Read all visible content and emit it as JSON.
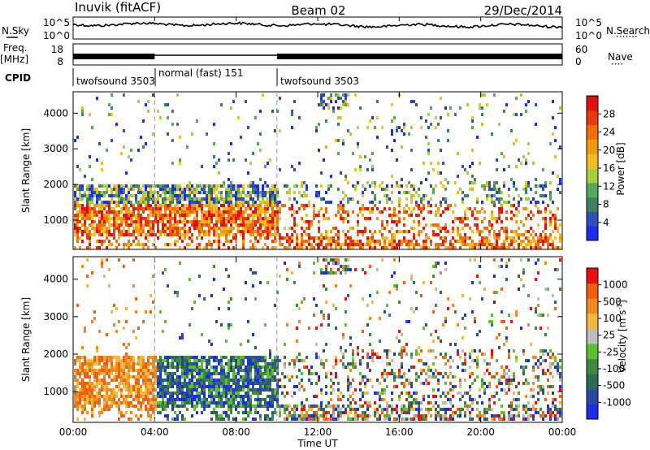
{
  "header": {
    "radar": "Inuvik (fitACF)",
    "beam": "Beam 02",
    "date": "29/Dec/2014"
  },
  "nsky_panel": {
    "left_label": "N.Sky",
    "right_label": "N.Search",
    "right_dots": "·······",
    "left_ticks": [
      "10^5",
      "10^0"
    ],
    "right_ticks": [
      "10^5",
      "10^0"
    ]
  },
  "freq_panel": {
    "left_label": "Freq.",
    "left_unit": "[MHz]",
    "right_label": "Nave",
    "right_dots": "····",
    "left_ticks": [
      "18",
      "8"
    ],
    "right_ticks": [
      "60",
      "0"
    ]
  },
  "cpid": {
    "label": "CPID",
    "modes": [
      {
        "name": "twofsound 3503",
        "start_h": 0,
        "end_h": 4
      },
      {
        "name": "normal (fast) 151",
        "start_h": 4,
        "end_h": 10
      },
      {
        "name": "twofsound 3503",
        "start_h": 10,
        "end_h": 24
      }
    ]
  },
  "chart_data": [
    {
      "type": "heatmap",
      "name": "power-panel",
      "ylabel": "Slant Range [km]",
      "ylim": [
        180,
        4600
      ],
      "yticks": [
        "1000",
        "2000",
        "3000",
        "4000"
      ],
      "ytick_values": [
        1000,
        2000,
        3000,
        4000
      ],
      "xlim_hours": [
        0,
        24
      ],
      "colorbar": {
        "label": "Power [dB]",
        "ticks": [
          "4",
          "8",
          "12",
          "16",
          "20",
          "24",
          "28"
        ],
        "colors": [
          "#1c2cf2",
          "#2e4fb8",
          "#3f8060",
          "#55a85a",
          "#a8cf3a",
          "#f0c020",
          "#f09a10",
          "#f26e0a",
          "#e83a0a",
          "#e01010"
        ]
      }
    },
    {
      "type": "heatmap",
      "name": "velocity-panel",
      "ylabel": "Slant Range [km]",
      "ylim": [
        180,
        4600
      ],
      "yticks": [
        "1000",
        "2000",
        "3000",
        "4000"
      ],
      "ytick_values": [
        1000,
        2000,
        3000,
        4000
      ],
      "xlim_hours": [
        0,
        24
      ],
      "colorbar": {
        "label": "Velocity [m s",
        "label_sup": "-1",
        "label_end": "]",
        "ticks": [
          "1000",
          "500",
          "100",
          "25",
          "-25",
          "-100",
          "-500",
          "-1000"
        ],
        "colors": [
          "#1c2ce8",
          "#2a4aa8",
          "#2f6a58",
          "#3f8a3f",
          "#5cc030",
          "#bdbdbd",
          "#f0b840",
          "#f08a20",
          "#f06010",
          "#e81010"
        ]
      }
    }
  ],
  "x_axis": {
    "title": "Time UT",
    "ticks": [
      "00:00",
      "04:00",
      "08:00",
      "12:00",
      "16:00",
      "20:00",
      "00:00"
    ],
    "tick_hours": [
      0,
      4,
      8,
      12,
      16,
      20,
      24
    ]
  }
}
